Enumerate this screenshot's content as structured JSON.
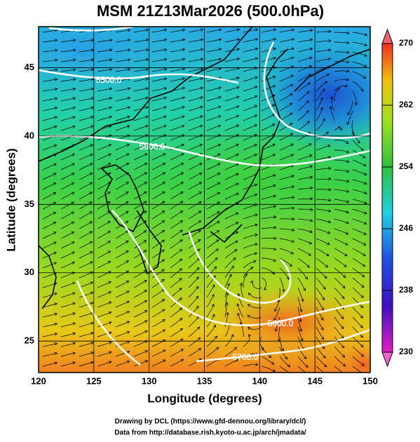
{
  "title": "MSM 21Z13Mar2026 (500.0hPa)",
  "x_axis": {
    "label": "Longitude (degrees)",
    "lim": [
      120,
      150
    ],
    "ticks": [
      120,
      125,
      130,
      135,
      140,
      145,
      150
    ]
  },
  "y_axis": {
    "label": "Latitude  (degrees)",
    "lim": [
      22.7,
      48
    ],
    "ticks": [
      25,
      30,
      35,
      40,
      45
    ]
  },
  "colorbar": {
    "lim": [
      230,
      270
    ],
    "ticks": [
      230,
      238,
      246,
      254,
      262,
      270
    ]
  },
  "contour_labels": [
    "5500.0",
    "5600.0",
    "5600.0",
    "5700.0"
  ],
  "credits": [
    "Drawing by DCL (https://www.gfd-dennou.org/library/dcl/)",
    "Data from http://database.rish.kyoto-u.ac.jp/arch/jmadata/"
  ]
}
